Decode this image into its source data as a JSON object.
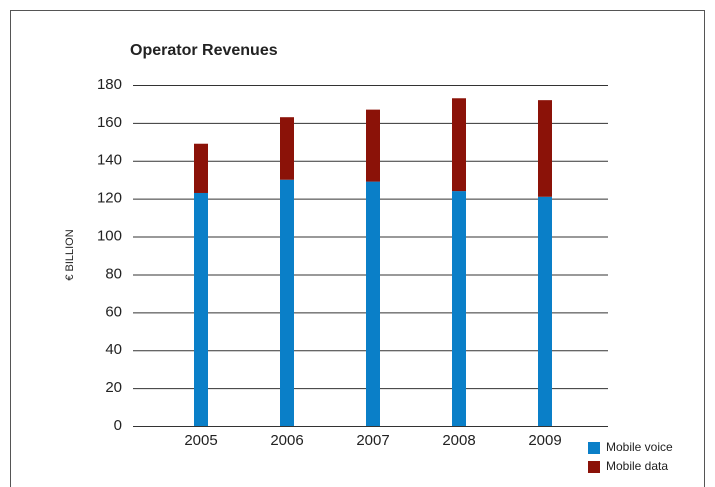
{
  "chart_data": {
    "type": "stacked_bar",
    "title": "Operator Revenues",
    "y_label": "€ BILLION",
    "categories": [
      "2005",
      "2006",
      "2007",
      "2008",
      "2009"
    ],
    "series": [
      {
        "name": "Mobile voice",
        "color": "#0a7fc8",
        "values": [
          123,
          130,
          129,
          124,
          121
        ]
      },
      {
        "name": "Mobile data",
        "color": "#8b1208",
        "values": [
          26,
          33,
          38,
          49,
          51
        ]
      }
    ],
    "ylim": [
      0,
      180
    ],
    "yticks": [
      0,
      20,
      40,
      60,
      80,
      100,
      120,
      140,
      160,
      180
    ],
    "grid": true,
    "legend": "lower right"
  }
}
